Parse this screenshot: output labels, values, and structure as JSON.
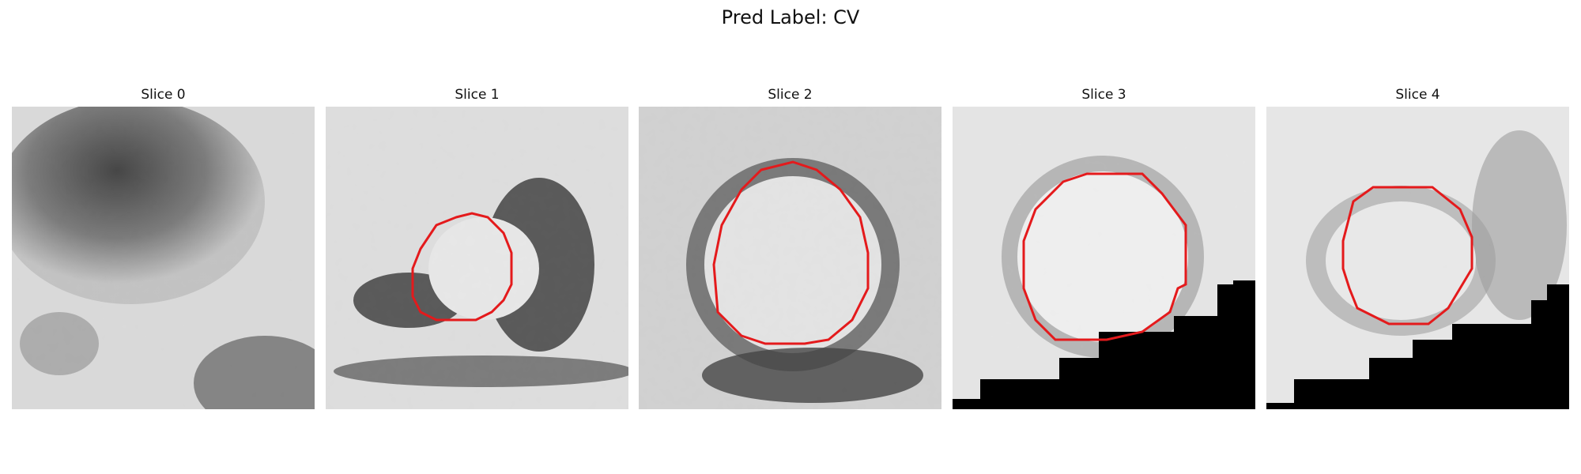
{
  "figure": {
    "title": "Pred Label: CV",
    "panels": [
      {
        "title": "Slice 0",
        "has_contour": false
      },
      {
        "title": "Slice 1",
        "has_contour": true
      },
      {
        "title": "Slice 2",
        "has_contour": true
      },
      {
        "title": "Slice 3",
        "has_contour": true
      },
      {
        "title": "Slice 4",
        "has_contour": true
      }
    ],
    "contour_color": "#e41a1c"
  }
}
